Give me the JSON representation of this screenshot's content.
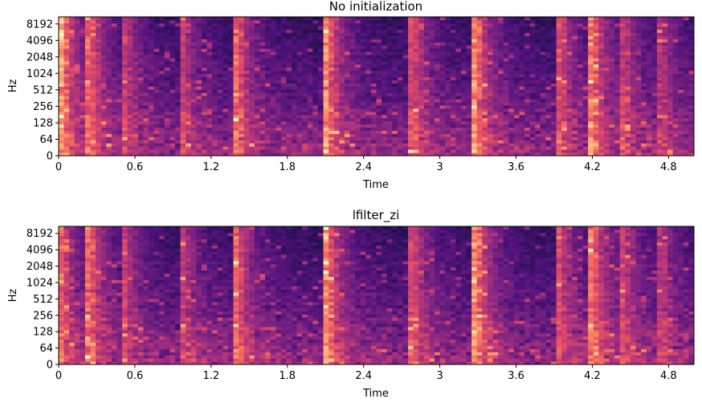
{
  "chart_data": [
    {
      "type": "heatmap",
      "title": "No initialization",
      "xlabel": "Time",
      "ylabel": "Hz",
      "xlim": [
        0,
        5.0
      ],
      "x_ticks": [
        0,
        0.6,
        1.2,
        1.8,
        2.4,
        3.0,
        3.6,
        4.2,
        4.8
      ],
      "x_tick_labels": [
        "0",
        "0.6",
        "1.2",
        "1.8",
        "2.4",
        "3",
        "3.6",
        "4.2",
        "4.8"
      ],
      "y_scale": "symlog",
      "ylim": [
        0,
        11025
      ],
      "y_ticks": [
        0,
        64,
        128,
        256,
        512,
        1024,
        2048,
        4096,
        8192
      ],
      "y_tick_labels": [
        "0",
        "64",
        "128",
        "256",
        "512",
        "1024",
        "2048",
        "4096",
        "8192"
      ],
      "colormap": "magma",
      "onsets": [
        0.02,
        0.25,
        0.52,
        0.98,
        1.4,
        2.1,
        2.8,
        3.28,
        3.95,
        4.2,
        4.45,
        4.75
      ],
      "onset_strength": [
        1.0,
        0.75,
        0.55,
        0.5,
        0.75,
        0.95,
        0.6,
        0.9,
        0.6,
        0.85,
        0.55,
        0.45
      ]
    },
    {
      "type": "heatmap",
      "title": "lfilter_zi",
      "xlabel": "Time",
      "ylabel": "Hz",
      "xlim": [
        0,
        5.0
      ],
      "x_ticks": [
        0,
        0.6,
        1.2,
        1.8,
        2.4,
        3.0,
        3.6,
        4.2,
        4.8
      ],
      "x_tick_labels": [
        "0",
        "0.6",
        "1.2",
        "1.8",
        "2.4",
        "3",
        "3.6",
        "4.2",
        "4.8"
      ],
      "y_scale": "symlog",
      "ylim": [
        0,
        11025
      ],
      "y_ticks": [
        0,
        64,
        128,
        256,
        512,
        1024,
        2048,
        4096,
        8192
      ],
      "y_tick_labels": [
        "0",
        "64",
        "128",
        "256",
        "512",
        "1024",
        "2048",
        "4096",
        "8192"
      ],
      "colormap": "magma",
      "onsets": [
        0.02,
        0.25,
        0.52,
        0.98,
        1.4,
        2.1,
        2.8,
        3.28,
        3.95,
        4.2,
        4.45,
        4.75
      ],
      "onset_strength": [
        0.7,
        0.75,
        0.55,
        0.5,
        0.75,
        0.95,
        0.6,
        0.9,
        0.6,
        0.85,
        0.55,
        0.45
      ]
    }
  ]
}
